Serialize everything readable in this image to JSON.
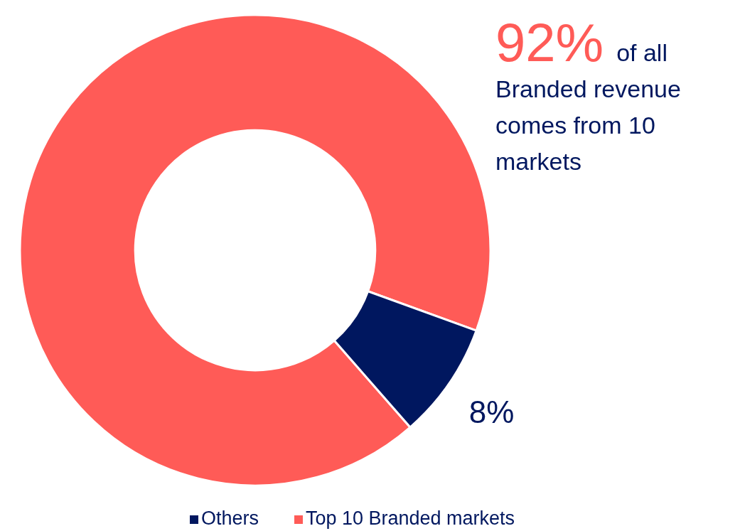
{
  "chart_data": {
    "type": "donut",
    "categories": [
      "Top 10 Branded markets",
      "Others"
    ],
    "values": [
      92,
      8
    ],
    "colors": [
      "#ff5b57",
      "#00175f"
    ],
    "value_labels": [
      null,
      "8%"
    ],
    "annotations": [
      "92%",
      "of all Branded revenue comes from 10 markets"
    ],
    "legend": "bottom"
  }
}
